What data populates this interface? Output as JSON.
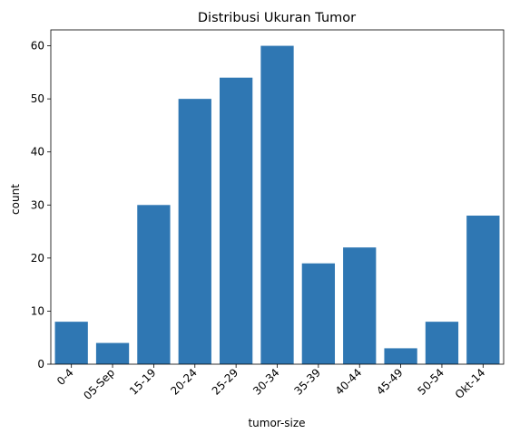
{
  "chart_data": {
    "type": "bar",
    "title": "Distribusi Ukuran Tumor",
    "xlabel": "tumor-size",
    "ylabel": "count",
    "categories": [
      "0-4",
      "05-Sep",
      "15-19",
      "20-24",
      "25-29",
      "30-34",
      "35-39",
      "40-44",
      "45-49",
      "50-54",
      "Okt-14"
    ],
    "values": [
      8,
      4,
      30,
      50,
      54,
      60,
      19,
      22,
      3,
      8,
      28
    ],
    "ylim": [
      0,
      63
    ],
    "yticks": [
      0,
      10,
      20,
      30,
      40,
      50,
      60
    ],
    "grid": false,
    "legend": "none",
    "x_tick_rotation_deg": 45,
    "bar_color": "#2f77b3"
  }
}
